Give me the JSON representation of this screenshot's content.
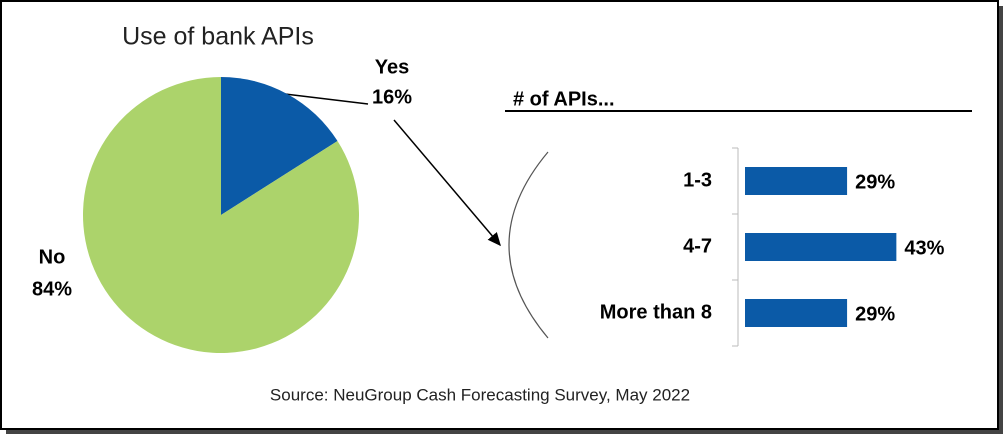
{
  "chart_data": [
    {
      "type": "pie",
      "title": "Use of bank APIs",
      "categories": [
        "Yes",
        "No"
      ],
      "values": [
        16,
        84
      ],
      "value_labels": [
        "16%",
        "84%"
      ],
      "colors": [
        "#0b5aa7",
        "#acd36b"
      ]
    },
    {
      "type": "hbar",
      "title": "# of APIs...",
      "categories": [
        "1-3",
        "4-7",
        "More than 8"
      ],
      "values": [
        29,
        43,
        29
      ],
      "value_labels": [
        "29%",
        "43%",
        "29%"
      ],
      "color": "#0b5aa7"
    }
  ],
  "source": "Source: NeuGroup Cash Forecasting Survey, May 2022"
}
